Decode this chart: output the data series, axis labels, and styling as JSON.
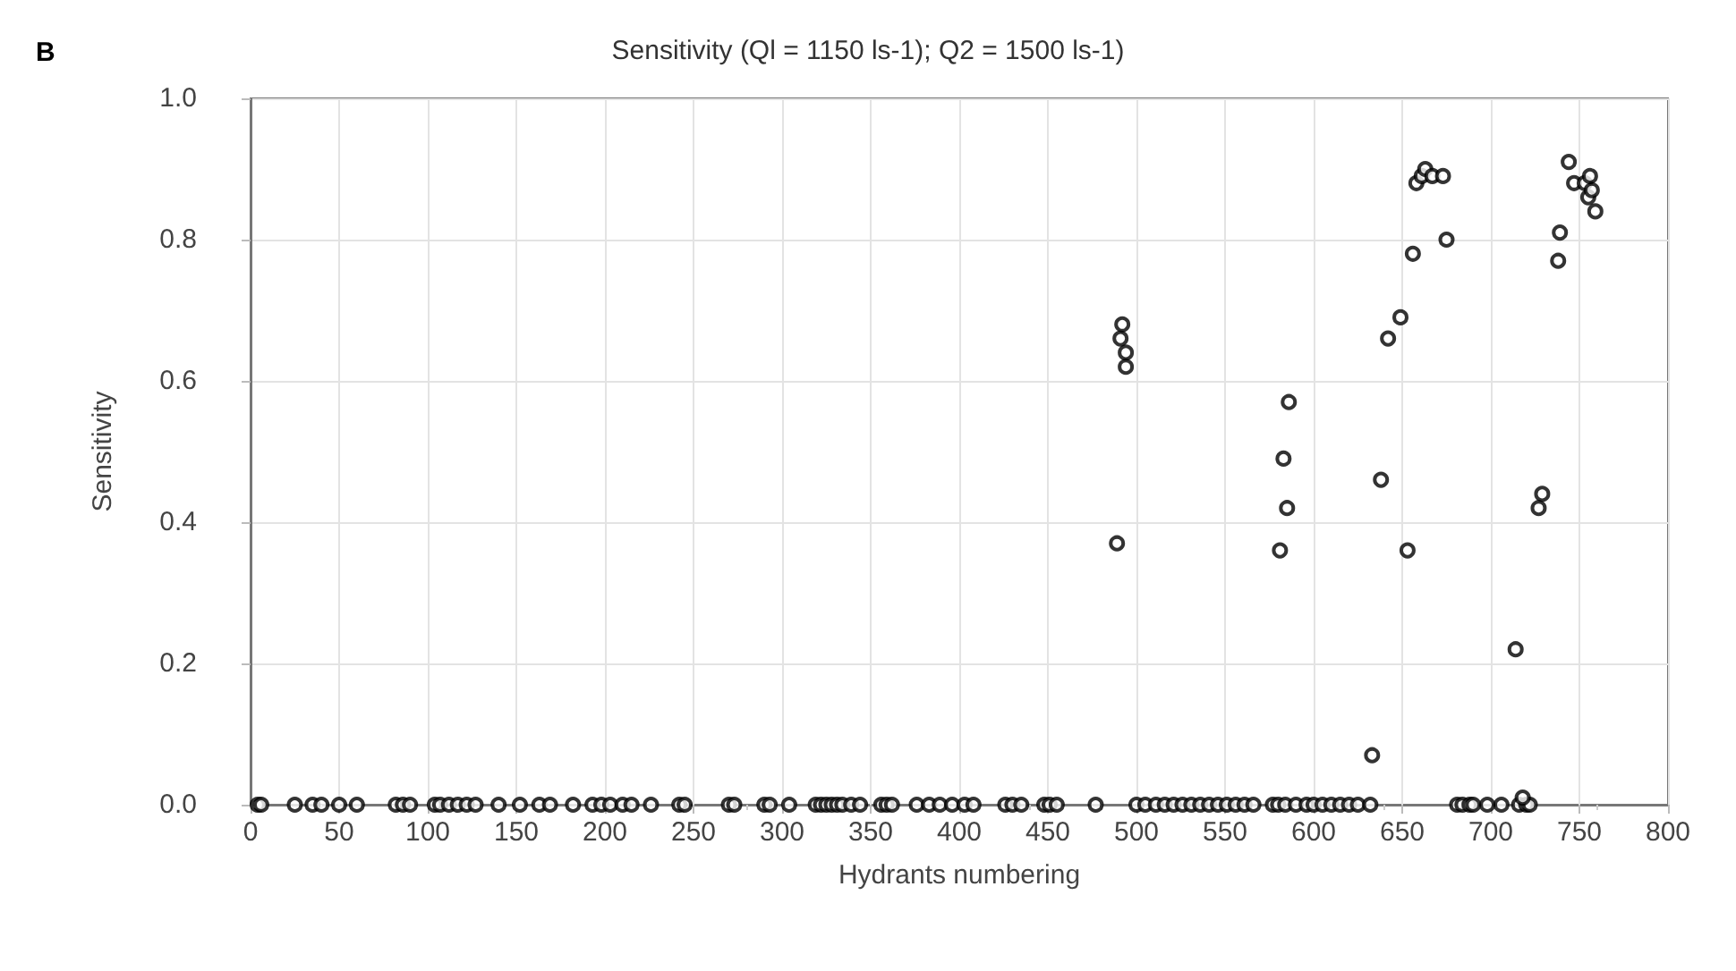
{
  "chart_data": {
    "type": "scatter",
    "title": "Sensitivity (Ql = 1150 ls-1); Q2 = 1500 ls-1)",
    "xlabel": "Hydrants numbering",
    "ylabel": "Sensitivity",
    "annotations": [
      "B"
    ],
    "x": [
      4,
      6,
      25,
      35,
      40,
      50,
      60,
      82,
      86,
      90,
      104,
      107,
      112,
      117,
      122,
      127,
      140,
      152,
      163,
      169,
      182,
      193,
      198,
      203,
      210,
      215,
      226,
      242,
      245,
      270,
      273,
      290,
      293,
      304,
      319,
      322,
      325,
      328,
      331,
      334,
      339,
      344,
      356,
      359,
      362,
      376,
      383,
      389,
      396,
      403,
      408,
      426,
      430,
      435,
      448,
      451,
      455,
      477,
      500,
      505,
      511,
      516,
      521,
      526,
      531,
      536,
      541,
      546,
      551,
      556,
      561,
      566,
      577,
      580,
      584,
      590,
      596,
      600,
      605,
      610,
      615,
      620,
      625,
      632,
      681,
      684,
      688,
      690,
      698,
      706,
      716,
      720,
      722,
      489,
      491,
      492,
      494,
      494,
      581,
      583,
      585,
      586,
      633,
      638,
      642,
      649,
      653,
      656,
      658,
      661,
      663,
      667,
      673,
      675,
      714,
      718,
      727,
      729,
      738,
      739,
      744,
      747,
      753,
      755,
      756,
      757,
      759
    ],
    "values": [
      0,
      0,
      0,
      0,
      0,
      0,
      0,
      0,
      0,
      0,
      0,
      0,
      0,
      0,
      0,
      0,
      0,
      0,
      0,
      0,
      0,
      0,
      0,
      0,
      0,
      0,
      0,
      0,
      0,
      0,
      0,
      0,
      0,
      0,
      0,
      0,
      0,
      0,
      0,
      0,
      0,
      0,
      0,
      0,
      0,
      0,
      0,
      0,
      0,
      0,
      0,
      0,
      0,
      0,
      0,
      0,
      0,
      0,
      0,
      0,
      0,
      0,
      0,
      0,
      0,
      0,
      0,
      0,
      0,
      0,
      0,
      0,
      0,
      0,
      0,
      0,
      0,
      0,
      0,
      0,
      0,
      0,
      0,
      0,
      0,
      0,
      0,
      0,
      0,
      0,
      0,
      0,
      0,
      0.37,
      0.66,
      0.68,
      0.64,
      0.62,
      0.36,
      0.49,
      0.42,
      0.57,
      0.07,
      0.46,
      0.66,
      0.69,
      0.36,
      0.78,
      0.88,
      0.89,
      0.9,
      0.89,
      0.89,
      0.8,
      0.22,
      0.01,
      0.42,
      0.44,
      0.77,
      0.81,
      0.91,
      0.88,
      0.88,
      0.86,
      0.89,
      0.87,
      0.84
    ],
    "color": "#000000",
    "marker": "circle",
    "grid": true,
    "xlim": [
      0,
      800
    ],
    "xticks": [
      0,
      50,
      100,
      150,
      200,
      250,
      300,
      350,
      400,
      450,
      500,
      550,
      600,
      650,
      700,
      750,
      800
    ],
    "ylim": [
      0,
      1
    ],
    "yticks": [
      {
        "value": 0,
        "label": "0.0"
      },
      {
        "value": 0.2,
        "label": "0.2"
      },
      {
        "value": 0.4,
        "label": "0.4"
      },
      {
        "value": 0.6,
        "label": "0.6"
      },
      {
        "value": 0.8,
        "label": "0.8"
      },
      {
        "value": 1,
        "label": "1.0"
      }
    ]
  }
}
